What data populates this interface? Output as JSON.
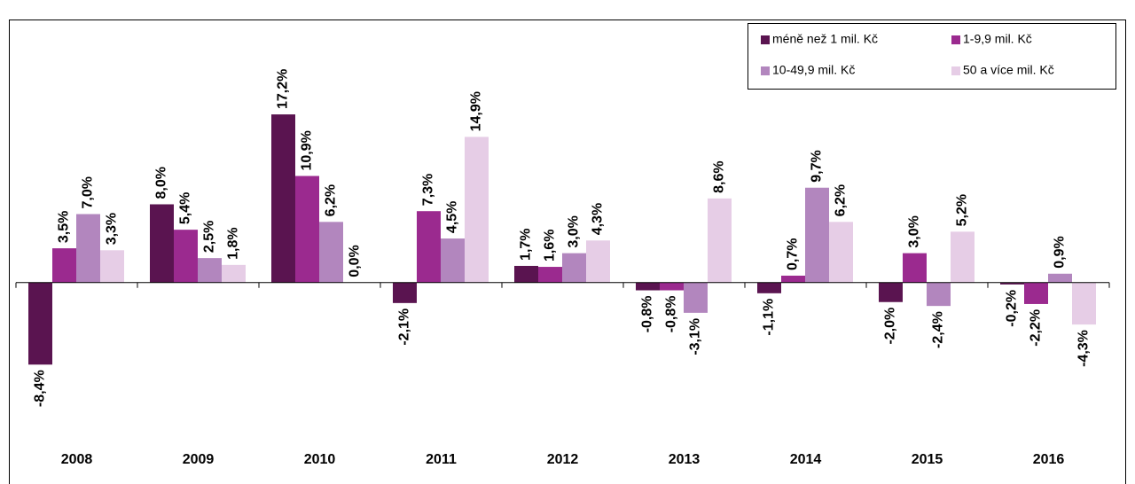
{
  "chart_data": {
    "type": "bar",
    "categories": [
      "2008",
      "2009",
      "2010",
      "2011",
      "2012",
      "2013",
      "2014",
      "2015",
      "2016"
    ],
    "series": [
      {
        "name": "méně než 1 mil. Kč",
        "color": "#5a1450",
        "values": [
          -8.4,
          8.0,
          17.2,
          -2.1,
          1.7,
          -0.8,
          -1.1,
          -2.0,
          -0.2
        ],
        "value_labels": [
          "-8,4%",
          "8,0%",
          "17,2%",
          "-2,1%",
          "1,7%",
          "-0,8%",
          "-1,1%",
          "-2,0%",
          "-0,2%"
        ]
      },
      {
        "name": "1-9,9 mil. Kč",
        "color": "#9b2a8f",
        "values": [
          3.5,
          5.4,
          10.9,
          7.3,
          1.6,
          -0.8,
          0.7,
          3.0,
          -2.2
        ],
        "value_labels": [
          "3,5%",
          "5,4%",
          "10,9%",
          "7,3%",
          "1,6%",
          "-0,8%",
          "0,7%",
          "3,0%",
          "-2,2%"
        ]
      },
      {
        "name": "10-49,9 mil. Kč",
        "color": "#b286be",
        "values": [
          7.0,
          2.5,
          6.2,
          4.5,
          3.0,
          -3.1,
          9.7,
          -2.4,
          0.9
        ],
        "value_labels": [
          "7,0%",
          "2,5%",
          "6,2%",
          "4,5%",
          "3,0%",
          "-3,1%",
          "9,7%",
          "-2,4%",
          "0,9%"
        ]
      },
      {
        "name": "50 a více mil. Kč",
        "color": "#e6cde6",
        "values": [
          3.3,
          1.8,
          0.0,
          14.9,
          4.3,
          8.6,
          6.2,
          5.2,
          -4.3
        ],
        "value_labels": [
          "3,3%",
          "1,8%",
          "0,0%",
          "14,9%",
          "4,3%",
          "8,6%",
          "6,2%",
          "5,2%",
          "-4,3%"
        ]
      }
    ],
    "ylim": [
      -12,
      27
    ],
    "legend": "top-right"
  }
}
